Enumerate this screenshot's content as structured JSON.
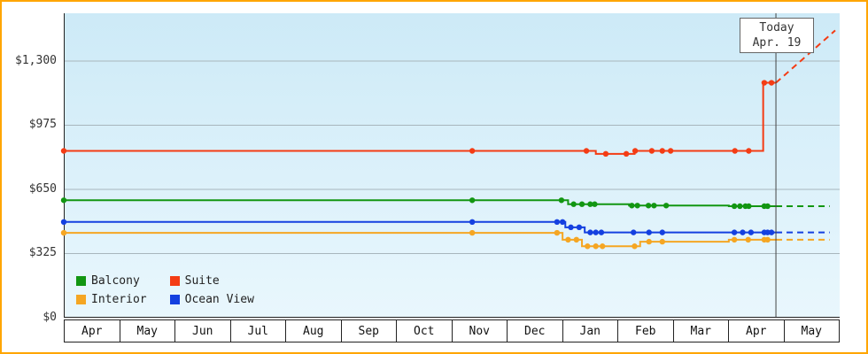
{
  "colors": {
    "border": "#ffa500",
    "plot_bg_top": "#cdeaf7",
    "plot_bg_bottom": "#e9f7fd",
    "grid": "#a8b6bd",
    "axis": "#222222",
    "today_line": "#444444"
  },
  "chart_data": {
    "type": "line",
    "title": "",
    "xlabel": "",
    "ylabel": "",
    "ylim": [
      0,
      1542
    ],
    "x_units": 14,
    "grid": true,
    "legend_position": "bottom-left",
    "x_months": [
      "Apr",
      "May",
      "Jun",
      "Jul",
      "Aug",
      "Sep",
      "Oct",
      "Nov",
      "Dec",
      "Jan",
      "Feb",
      "Mar",
      "Apr",
      "May"
    ],
    "yticks": [
      {
        "value": 0,
        "label": "$0"
      },
      {
        "value": 325,
        "label": "$325"
      },
      {
        "value": 650,
        "label": "$650"
      },
      {
        "value": 975,
        "label": "$975"
      },
      {
        "value": 1300,
        "label": "$1,300"
      }
    ],
    "today": {
      "x": 12.85,
      "line1": "Today",
      "line2": "Apr. 19"
    },
    "series": [
      {
        "name": "Suite",
        "color": "#f43c14",
        "line": [
          [
            0,
            845
          ],
          [
            9.6,
            845
          ],
          [
            9.6,
            830
          ],
          [
            10.3,
            830
          ],
          [
            10.3,
            845
          ],
          [
            12.62,
            845
          ],
          [
            12.62,
            1190
          ],
          [
            12.85,
            1190
          ]
        ],
        "markers": [
          [
            0,
            845
          ],
          [
            7.37,
            845
          ],
          [
            9.43,
            845
          ],
          [
            9.78,
            830
          ],
          [
            10.15,
            830
          ],
          [
            10.31,
            845
          ],
          [
            10.61,
            845
          ],
          [
            10.8,
            845
          ],
          [
            10.95,
            845
          ],
          [
            12.11,
            845
          ],
          [
            12.36,
            845
          ],
          [
            12.64,
            1190
          ],
          [
            12.77,
            1190
          ]
        ],
        "projection": [
          [
            12.85,
            1190
          ],
          [
            13.92,
            1455
          ]
        ]
      },
      {
        "name": "Balcony",
        "color": "#129612",
        "line": [
          [
            0,
            595
          ],
          [
            9.1,
            595
          ],
          [
            9.1,
            575
          ],
          [
            10.2,
            575
          ],
          [
            10.2,
            568
          ],
          [
            12.0,
            568
          ],
          [
            12.0,
            565
          ],
          [
            12.85,
            565
          ]
        ],
        "markers": [
          [
            0,
            595
          ],
          [
            7.37,
            595
          ],
          [
            8.98,
            595
          ],
          [
            9.2,
            575
          ],
          [
            9.35,
            575
          ],
          [
            9.5,
            575
          ],
          [
            9.58,
            575
          ],
          [
            10.25,
            568
          ],
          [
            10.35,
            568
          ],
          [
            10.55,
            568
          ],
          [
            10.65,
            568
          ],
          [
            10.87,
            568
          ],
          [
            12.1,
            565
          ],
          [
            12.2,
            565
          ],
          [
            12.3,
            565
          ],
          [
            12.36,
            565
          ],
          [
            12.64,
            565
          ],
          [
            12.7,
            565
          ]
        ],
        "projection": [
          [
            12.85,
            565
          ],
          [
            13.82,
            565
          ]
        ]
      },
      {
        "name": "Ocean View",
        "color": "#1440e0",
        "line": [
          [
            0,
            485
          ],
          [
            9.05,
            485
          ],
          [
            9.05,
            458
          ],
          [
            9.4,
            458
          ],
          [
            9.4,
            432
          ],
          [
            12.85,
            432
          ]
        ],
        "markers": [
          [
            0,
            485
          ],
          [
            7.37,
            485
          ],
          [
            8.9,
            485
          ],
          [
            9.0,
            485
          ],
          [
            9.15,
            458
          ],
          [
            9.3,
            458
          ],
          [
            9.5,
            432
          ],
          [
            9.6,
            432
          ],
          [
            9.7,
            432
          ],
          [
            10.28,
            432
          ],
          [
            10.56,
            432
          ],
          [
            10.8,
            432
          ],
          [
            12.1,
            432
          ],
          [
            12.25,
            432
          ],
          [
            12.4,
            432
          ],
          [
            12.64,
            432
          ],
          [
            12.7,
            432
          ],
          [
            12.77,
            432
          ]
        ],
        "projection": [
          [
            12.85,
            432
          ],
          [
            13.82,
            432
          ]
        ]
      },
      {
        "name": "Interior",
        "color": "#f5a623",
        "line": [
          [
            0,
            430
          ],
          [
            9.0,
            430
          ],
          [
            9.0,
            395
          ],
          [
            9.35,
            395
          ],
          [
            9.35,
            362
          ],
          [
            10.4,
            362
          ],
          [
            10.4,
            385
          ],
          [
            12.0,
            385
          ],
          [
            12.0,
            395
          ],
          [
            12.85,
            395
          ]
        ],
        "markers": [
          [
            0,
            430
          ],
          [
            7.37,
            430
          ],
          [
            8.9,
            430
          ],
          [
            9.1,
            395
          ],
          [
            9.25,
            395
          ],
          [
            9.45,
            362
          ],
          [
            9.6,
            362
          ],
          [
            9.72,
            362
          ],
          [
            10.3,
            362
          ],
          [
            10.56,
            385
          ],
          [
            10.8,
            385
          ],
          [
            12.1,
            395
          ],
          [
            12.35,
            395
          ],
          [
            12.64,
            395
          ],
          [
            12.7,
            395
          ]
        ],
        "projection": [
          [
            12.85,
            395
          ],
          [
            13.82,
            395
          ]
        ]
      }
    ],
    "legend": [
      {
        "label": "Balcony",
        "color": "#129612"
      },
      {
        "label": "Suite",
        "color": "#f43c14"
      },
      {
        "label": "Interior",
        "color": "#f5a623"
      },
      {
        "label": "Ocean View",
        "color": "#1440e0"
      }
    ]
  }
}
